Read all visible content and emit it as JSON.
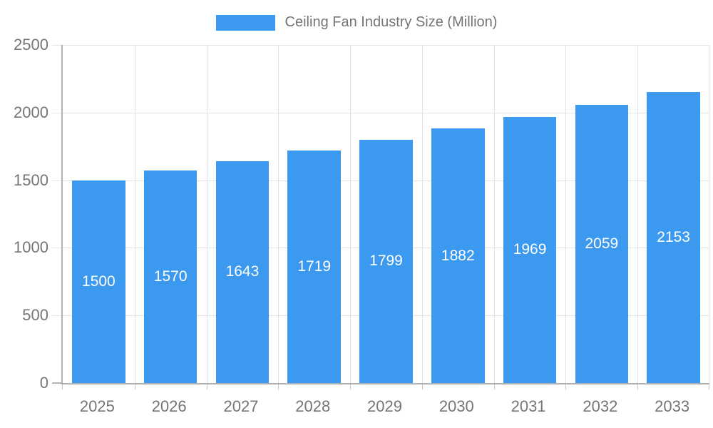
{
  "legend": {
    "label": "Ceiling Fan Industry Size (Million)"
  },
  "chart_data": {
    "type": "bar",
    "title": "Ceiling Fan Industry Size (Million)",
    "categories": [
      "2025",
      "2026",
      "2027",
      "2028",
      "2029",
      "2030",
      "2031",
      "2032",
      "2033"
    ],
    "values": [
      1500,
      1570,
      1643,
      1719,
      1799,
      1882,
      1969,
      2059,
      2153
    ],
    "series": [
      {
        "name": "Ceiling Fan Industry Size (Million)",
        "values": [
          1500,
          1570,
          1643,
          1719,
          1799,
          1882,
          1969,
          2059,
          2153
        ]
      }
    ],
    "xlabel": "",
    "ylabel": "",
    "ylim": [
      0,
      2500
    ],
    "yticks": [
      0,
      500,
      1000,
      1500,
      2000,
      2500
    ],
    "grid": true,
    "legend_position": "top-center",
    "value_labels": "inside-center",
    "colors": {
      "bar": "#3B99F0",
      "value_label": "#ffffff",
      "tick_label": "#757575",
      "axis": "#b2b2b2",
      "gridline": "#e3e3e3"
    }
  }
}
